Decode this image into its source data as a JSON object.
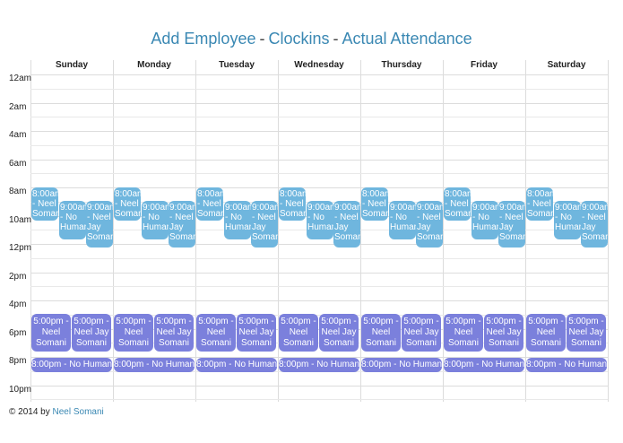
{
  "nav": {
    "items": [
      "Add Employee",
      "Clockins",
      "Actual Attendance"
    ],
    "separator": "-"
  },
  "calendar": {
    "days": [
      "Sunday",
      "Monday",
      "Tuesday",
      "Wednesday",
      "Thursday",
      "Friday",
      "Saturday"
    ],
    "time_labels": [
      "12am",
      "2am",
      "4am",
      "6am",
      "8am",
      "10am",
      "12pm",
      "2pm",
      "4pm",
      "6pm",
      "8pm",
      "10pm"
    ],
    "morning_events": [
      "8:00am - Neel Somani",
      "9:00am - No Human",
      "9:00am - Neel Jay Somani"
    ],
    "evening_events": [
      "5:00pm - Neel Somani",
      "5:00pm - Neel Jay Somani"
    ],
    "night_event": "8:00pm - No Human"
  },
  "colors": {
    "link": "#3a88b3",
    "morning_event_bg": "#6fb6de",
    "evening_event_bg": "#7b80dc"
  },
  "footer": {
    "prefix": "© 2014 by",
    "author": "Neel Somani"
  }
}
